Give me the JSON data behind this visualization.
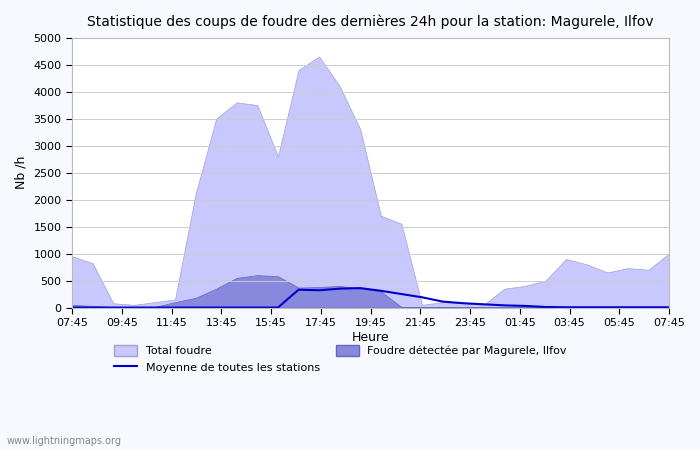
{
  "title": "Statistique des coups de foudre des dernières 24h pour la station: Magurele, Ilfov",
  "xlabel": "Heure",
  "ylabel": "Nb /h",
  "xlabels": [
    "07:45",
    "09:45",
    "11:45",
    "13:45",
    "15:45",
    "17:45",
    "19:45",
    "21:45",
    "23:45",
    "01:45",
    "03:45",
    "05:45",
    "07:45"
  ],
  "ylim": [
    0,
    5000
  ],
  "yticks": [
    0,
    500,
    1000,
    1500,
    2000,
    2500,
    3000,
    3500,
    4000,
    4500,
    5000
  ],
  "bg_color": "#f8f8ff",
  "plot_bg": "#ffffff",
  "grid_color": "#cccccc",
  "total_foudre_color": "#c8c8ff",
  "total_foudre_edge": "#a0a0d0",
  "local_foudre_color": "#8888dd",
  "local_foudre_edge": "#6666bb",
  "moyenne_color": "#0000cc",
  "watermark": "www.lightningmaps.org",
  "total_foudre": [
    950,
    820,
    80,
    50,
    100,
    150,
    2100,
    3500,
    3800,
    3750,
    2800,
    4400,
    4650,
    4100,
    3300,
    1700,
    1550,
    50,
    100,
    80,
    50,
    350,
    400,
    500,
    900,
    800,
    650,
    730,
    700,
    1000
  ],
  "local_foudre": [
    50,
    30,
    10,
    5,
    10,
    100,
    180,
    350,
    550,
    600,
    580,
    370,
    380,
    400,
    350,
    300,
    10,
    10,
    10,
    5,
    5,
    5,
    5,
    5,
    5,
    5,
    5,
    5,
    5,
    5
  ],
  "moyenne": [
    0,
    0,
    0,
    0,
    0,
    0,
    0,
    0,
    0,
    0,
    0,
    330,
    320,
    350,
    360,
    310,
    250,
    190,
    110,
    80,
    60,
    40,
    30,
    10,
    5,
    5,
    5,
    5,
    5,
    5
  ]
}
